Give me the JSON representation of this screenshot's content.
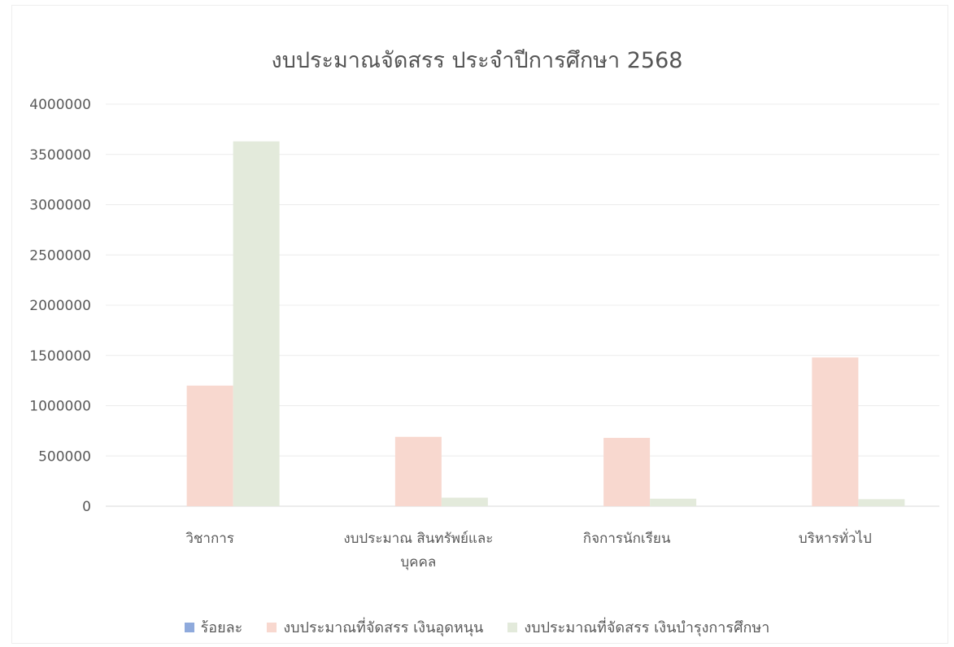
{
  "chart_data": {
    "type": "bar",
    "title": "งบประมาณจัดสรร ประจำปีการศึกษา 2568",
    "categories": [
      "วิชาการ",
      "งบประมาณ สินทรัพย์และ บุคคล",
      "กิจการนักเรียน",
      "บริหารทั่วไป"
    ],
    "category_lines": [
      [
        "วิชาการ"
      ],
      [
        "งบประมาณ สินทรัพย์และ",
        "บุคคล"
      ],
      [
        "กิจการนักเรียน"
      ],
      [
        "บริหารทั่วไป"
      ]
    ],
    "series": [
      {
        "name": "ร้อยละ",
        "color": "#8faadc",
        "values": [
          0,
          0,
          0,
          0
        ]
      },
      {
        "name": "งบประมาณที่จัดสรร เงินอุดหนุน",
        "color": "#f8d8cf",
        "values": [
          1200000,
          690000,
          680000,
          1480000
        ]
      },
      {
        "name": "งบประมาณที่จัดสรร เงินบำรุงการศึกษา",
        "color": "#e3eadb",
        "values": [
          3630000,
          85000,
          75000,
          70000
        ]
      }
    ],
    "ylim": [
      0,
      4000000
    ],
    "yticks": [
      "0",
      "500000",
      "1000000",
      "1500000",
      "2000000",
      "2500000",
      "3000000",
      "3500000",
      "4000000"
    ],
    "ytick_values": [
      0,
      500000,
      1000000,
      1500000,
      2000000,
      2500000,
      3000000,
      3500000,
      4000000
    ],
    "grid": true,
    "legend_position": "bottom"
  }
}
